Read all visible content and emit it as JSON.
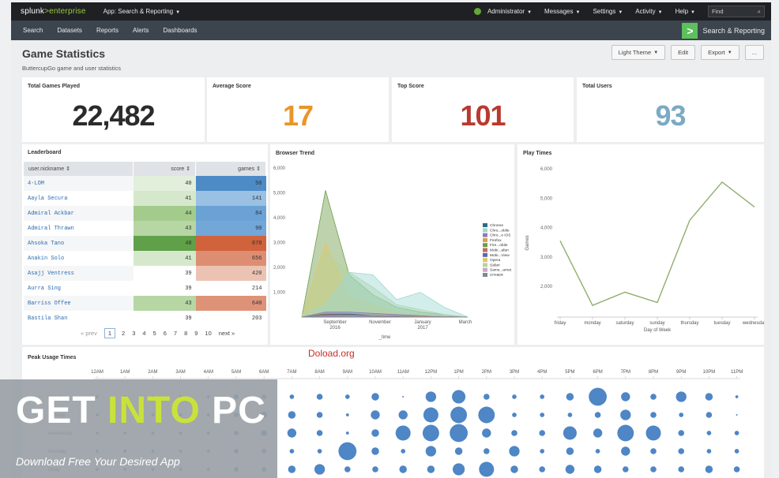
{
  "topbar": {
    "logo_brand": "splunk",
    "logo_product": ">enterprise",
    "app_menu": "App: Search & Reporting",
    "user_menu": "Administrator",
    "messages": "Messages",
    "settings": "Settings",
    "activity": "Activity",
    "help": "Help",
    "find_placeholder": "Find"
  },
  "navbar": {
    "items": [
      "Search",
      "Datasets",
      "Reports",
      "Alerts",
      "Dashboards"
    ],
    "app_title": "Search & Reporting"
  },
  "dashboard": {
    "title": "Game Statistics",
    "description": "ButtercupGo game and user statistics",
    "actions": {
      "theme": "Light Theme",
      "edit": "Edit",
      "export": "Export",
      "more": "..."
    }
  },
  "kpis": [
    {
      "label": "Total Games Played",
      "value": "22,482",
      "color": "#2b2b2b"
    },
    {
      "label": "Average Score",
      "value": "17",
      "color": "#e8952b"
    },
    {
      "label": "Top Score",
      "value": "101",
      "color": "#b83a2e"
    },
    {
      "label": "Total Users",
      "value": "93",
      "color": "#7aaac4"
    }
  ],
  "leaderboard": {
    "title": "Leaderboard",
    "columns": {
      "name": "user.nickname ⇕",
      "score": "score ⇕",
      "games": "games ⇕"
    },
    "rows": [
      {
        "name": "4-LOM",
        "score": "40",
        "games": "50",
        "score_bg": "#e2efdb",
        "games_bg": "#4d8bc6"
      },
      {
        "name": "Aayla Secura",
        "score": "41",
        "games": "141",
        "score_bg": "#d5e8cc",
        "games_bg": "#9ac0e3"
      },
      {
        "name": "Admiral Ackbar",
        "score": "44",
        "games": "84",
        "score_bg": "#a3cc8c",
        "games_bg": "#6aa2d6"
      },
      {
        "name": "Admiral Thrawn",
        "score": "43",
        "games": "90",
        "score_bg": "#b6d6a4",
        "games_bg": "#72a7d8"
      },
      {
        "name": "Ahsoka Tano",
        "score": "48",
        "games": "878",
        "score_bg": "#5fa048",
        "games_bg": "#d0623c"
      },
      {
        "name": "Anakin Solo",
        "score": "41",
        "games": "656",
        "score_bg": "#d5e8cc",
        "games_bg": "#dd8e72"
      },
      {
        "name": "Asajj Ventress",
        "score": "39",
        "games": "420",
        "score_bg": "#ffffff",
        "games_bg": "#ecc3b3"
      },
      {
        "name": "Aurra Sing",
        "score": "39",
        "games": "214",
        "score_bg": "#ffffff",
        "games_bg": "#ffffff"
      },
      {
        "name": "Barriss Offee",
        "score": "43",
        "games": "640",
        "score_bg": "#b6d6a4",
        "games_bg": "#de9378"
      },
      {
        "name": "Bastila Shan",
        "score": "39",
        "games": "203",
        "score_bg": "#ffffff",
        "games_bg": "#ffffff"
      }
    ],
    "pager": {
      "prev": "« prev",
      "pages": [
        "1",
        "2",
        "3",
        "4",
        "5",
        "6",
        "7",
        "8",
        "9",
        "10"
      ],
      "next": "next »"
    }
  },
  "watermark_text": "Doload.org",
  "overlay": {
    "get": "GET ",
    "into": "INTO",
    "pc": " PC",
    "sub": "Download Free Your Desired App"
  },
  "chart_data": [
    {
      "type": "area",
      "title": "Browser Trend",
      "xlabel": "_time",
      "ylabel": "",
      "ylim": [
        0,
        6000
      ],
      "yticks": [
        "6,000",
        "5,000",
        "4,000",
        "3,000",
        "2,000",
        "1,000"
      ],
      "x_ticks": [
        "September\n2016",
        "November",
        "January\n2017",
        "March"
      ],
      "x": [
        "2016-08",
        "2016-09",
        "2016-10",
        "2016-11",
        "2016-12",
        "2017-01",
        "2017-02",
        "2017-03"
      ],
      "series": [
        {
          "name": "Chrome",
          "color": "#2f6d83",
          "values": [
            0,
            120,
            120,
            60,
            40,
            20,
            0,
            0
          ]
        },
        {
          "name": "Chro...obile",
          "color": "#9ed8d2",
          "values": [
            0,
            500,
            1800,
            1700,
            700,
            1000,
            400,
            0
          ]
        },
        {
          "name": "Chro...e iOS",
          "color": "#8b7cc0",
          "values": [
            0,
            200,
            200,
            150,
            100,
            60,
            20,
            0
          ]
        },
        {
          "name": "Firefox",
          "color": "#d8a14a",
          "values": [
            0,
            150,
            100,
            80,
            60,
            40,
            20,
            0
          ]
        },
        {
          "name": "Fire...obile",
          "color": "#6e9d4a",
          "values": [
            0,
            5100,
            1700,
            900,
            400,
            200,
            100,
            0
          ]
        },
        {
          "name": "Mobi...afari",
          "color": "#c76a5e",
          "values": [
            0,
            100,
            80,
            60,
            40,
            30,
            10,
            0
          ]
        },
        {
          "name": "Mobi...View",
          "color": "#5b6aa8",
          "values": [
            0,
            80,
            60,
            40,
            30,
            20,
            10,
            0
          ]
        },
        {
          "name": "Opera",
          "color": "#e0c66a",
          "values": [
            0,
            3000,
            800,
            500,
            200,
            100,
            50,
            0
          ]
        },
        {
          "name": "Safari",
          "color": "#b9d39a",
          "values": [
            0,
            2600,
            1800,
            1200,
            500,
            300,
            100,
            0
          ]
        },
        {
          "name": "Sams...arnet",
          "color": "#cfa3c8",
          "values": [
            0,
            60,
            50,
            40,
            30,
            20,
            10,
            0
          ]
        },
        {
          "name": "OTHER",
          "color": "#7a8a96",
          "values": [
            0,
            40,
            30,
            30,
            20,
            10,
            5,
            0
          ]
        }
      ]
    },
    {
      "type": "line",
      "title": "Play Times",
      "xlabel": "Day of Week",
      "ylabel": "Games",
      "ylim": [
        1000,
        6000
      ],
      "yticks": [
        "6,000",
        "5,000",
        "4,000",
        "3,000",
        "2,000"
      ],
      "categories": [
        "friday",
        "monday",
        "saturday",
        "sunday",
        "thursday",
        "tuesday",
        "wednesday"
      ],
      "series": [
        {
          "color": "#8fae6e",
          "values": [
            3550,
            1350,
            1800,
            1450,
            4250,
            5550,
            4700
          ]
        }
      ]
    },
    {
      "type": "scatter",
      "title": "Peak Usage Times",
      "hours": [
        "12AM",
        "1AM",
        "2AM",
        "3AM",
        "4AM",
        "5AM",
        "6AM",
        "7AM",
        "8AM",
        "9AM",
        "10AM",
        "11AM",
        "12PM",
        "1PM",
        "2PM",
        "3PM",
        "4PM",
        "5PM",
        "6PM",
        "7PM",
        "8PM",
        "9PM",
        "10PM",
        "11PM"
      ],
      "days": [
        "monday",
        "tuesday",
        "wednesday",
        "thursday",
        "friday"
      ],
      "color": "#4e86c6",
      "values": [
        [
          2,
          2,
          2,
          2,
          2,
          3,
          3,
          3,
          4,
          3,
          5,
          1,
          7,
          9,
          4,
          3,
          3,
          5,
          12,
          6,
          4,
          7,
          5,
          2
        ],
        [
          2,
          2,
          2,
          2,
          2,
          3,
          4,
          5,
          4,
          2,
          6,
          6,
          10,
          11,
          11,
          3,
          3,
          3,
          4,
          7,
          4,
          3,
          4,
          1
        ],
        [
          2,
          2,
          2,
          2,
          2,
          3,
          4,
          6,
          4,
          2,
          5,
          10,
          11,
          12,
          6,
          4,
          4,
          9,
          6,
          11,
          10,
          4,
          3,
          3
        ],
        [
          2,
          2,
          2,
          2,
          2,
          3,
          3,
          3,
          3,
          12,
          5,
          3,
          7,
          5,
          4,
          7,
          3,
          5,
          3,
          6,
          4,
          4,
          3,
          3
        ],
        [
          2,
          2,
          2,
          2,
          2,
          3,
          3,
          5,
          7,
          4,
          4,
          5,
          5,
          8,
          10,
          5,
          4,
          6,
          5,
          4,
          4,
          4,
          5,
          4
        ]
      ]
    }
  ]
}
